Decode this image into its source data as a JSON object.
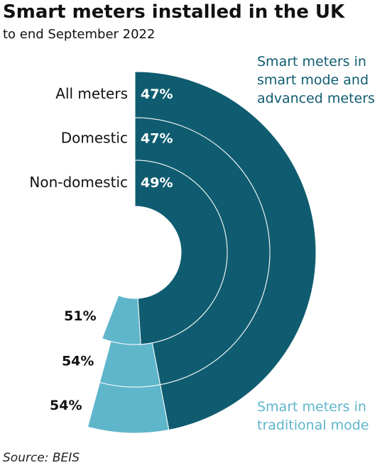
{
  "chart_data": {
    "type": "radial_bar",
    "title": "Smart meters installed in the UK",
    "subtitle": "to end September 2022",
    "source": "Source: BEIS",
    "categories": [
      "All meters",
      "Domestic",
      "Non-domestic"
    ],
    "series": [
      {
        "name": "Smart meters in smart mode and advanced meters",
        "color": "#0f5c70",
        "values": [
          47,
          47,
          49
        ],
        "value_labels": [
          "47%",
          "47%",
          "49%"
        ]
      },
      {
        "name": "Smart meters in traditional mode",
        "color": "#5fb6cb",
        "values": [
          54,
          54,
          51
        ],
        "value_labels": [
          "54%",
          "54%",
          "51%"
        ]
      }
    ]
  }
}
